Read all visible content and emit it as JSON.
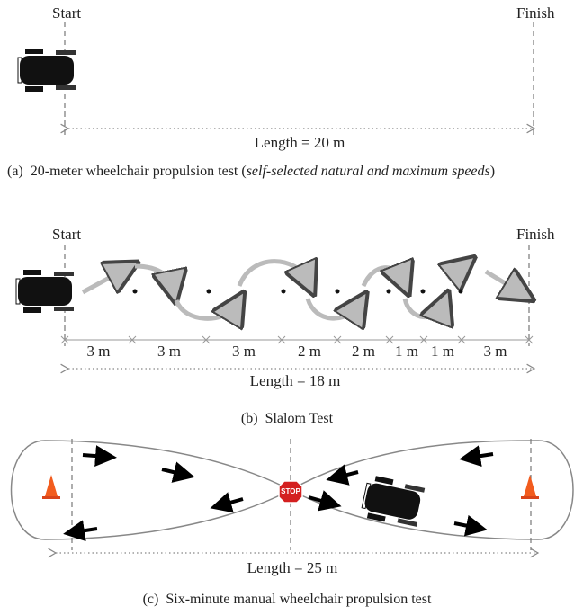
{
  "panels": [
    {
      "start": "Start",
      "finish": "Finish",
      "length": "Length = 20 m",
      "caption": {
        "label": "(a)",
        "text": "20-meter wheelchair propulsion test (",
        "italic": "self-selected natural and maximum speeds",
        "end": ")"
      }
    },
    {
      "start": "Start",
      "finish": "Finish",
      "segments": [
        "3 m",
        "3 m",
        "3 m",
        "2 m",
        "2 m",
        "1 m",
        "1 m",
        "3 m"
      ],
      "length": "Length = 18 m",
      "caption": {
        "label": "(b)",
        "text": "Slalom Test"
      }
    },
    {
      "sign": "STOP",
      "length": "Length = 25 m",
      "caption": {
        "label": "(c)",
        "text": "Six-minute manual wheelchair propulsion test"
      }
    }
  ]
}
